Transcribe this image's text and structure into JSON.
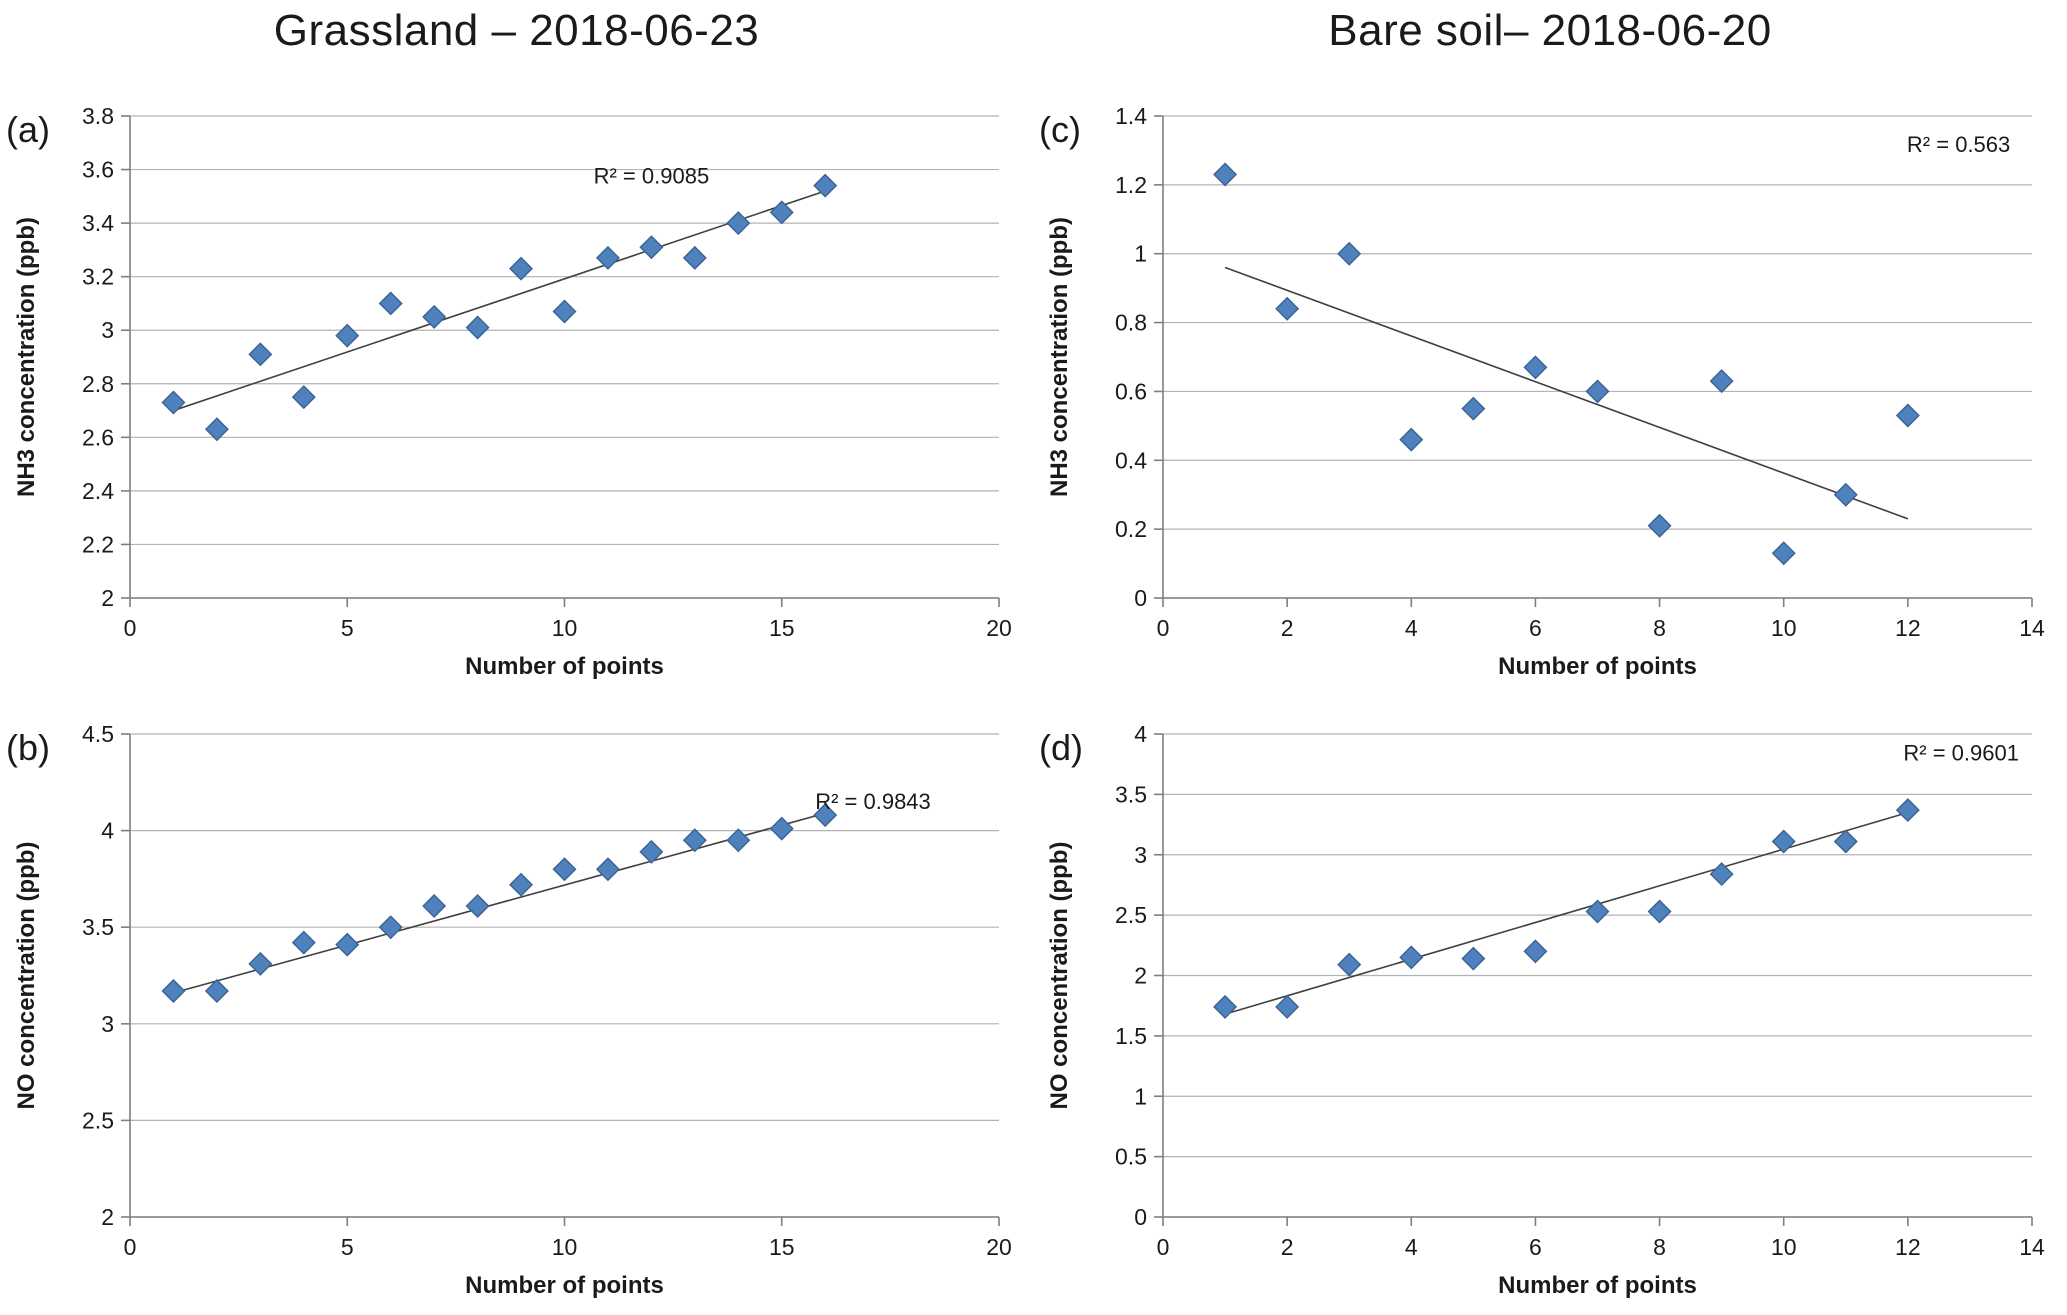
{
  "page": {
    "left_title": "Grassland – 2018-06-23",
    "right_title": "Bare soil– 2018-06-20"
  },
  "style": {
    "marker_fill": "#4F81BD",
    "marker_stroke": "#3A6293",
    "gridline_color": "#b3b3b3",
    "axis_color": "#7f7f7f",
    "trendline_color": "#404040",
    "text_color": "#1a1a1a"
  },
  "chart_data": [
    {
      "id": "a",
      "panel_label": "(a)",
      "type": "scatter",
      "xlabel": "Number of points",
      "ylabel": "NH3 concentration (ppb)",
      "xlim": [
        0,
        20
      ],
      "xtick_step": 5,
      "ylim": [
        2,
        3.8
      ],
      "ytick_step": 0.2,
      "grid": "horizontal",
      "legend": "none",
      "points": [
        [
          1,
          2.73
        ],
        [
          2,
          2.63
        ],
        [
          3,
          2.91
        ],
        [
          4,
          2.75
        ],
        [
          5,
          2.98
        ],
        [
          6,
          3.1
        ],
        [
          7,
          3.05
        ],
        [
          8,
          3.01
        ],
        [
          9,
          3.23
        ],
        [
          10,
          3.07
        ],
        [
          11,
          3.27
        ],
        [
          12,
          3.31
        ],
        [
          13,
          3.27
        ],
        [
          14,
          3.4
        ],
        [
          15,
          3.44
        ],
        [
          16,
          3.54
        ]
      ],
      "trendline": {
        "x1": 1,
        "y1": 2.7,
        "x2": 16,
        "y2": 3.52
      },
      "r2": {
        "label": "R² = 0.9085",
        "fx": 0.6,
        "fy": 0.14,
        "anchor": "middle"
      }
    },
    {
      "id": "c",
      "panel_label": "(c)",
      "type": "scatter",
      "xlabel": "Number of points",
      "ylabel": "NH3 concentration (ppb)",
      "xlim": [
        0,
        14
      ],
      "xtick_step": 2,
      "ylim": [
        0,
        1.4
      ],
      "ytick_step": 0.2,
      "grid": "horizontal",
      "legend": "none",
      "points": [
        [
          1,
          1.23
        ],
        [
          2,
          0.84
        ],
        [
          3,
          1.0
        ],
        [
          4,
          0.46
        ],
        [
          5,
          0.55
        ],
        [
          6,
          0.67
        ],
        [
          7,
          0.6
        ],
        [
          8,
          0.21
        ],
        [
          9,
          0.63
        ],
        [
          10,
          0.13
        ],
        [
          11,
          0.3
        ],
        [
          12,
          0.53
        ]
      ],
      "trendline": {
        "x1": 1,
        "y1": 0.96,
        "x2": 12,
        "y2": 0.23
      },
      "r2": {
        "label": "R² = 0.563",
        "fx": 0.975,
        "fy": 0.075,
        "anchor": "end"
      }
    },
    {
      "id": "b",
      "panel_label": "(b)",
      "type": "scatter",
      "xlabel": "Number of points",
      "ylabel": "NO concentration (ppb)",
      "xlim": [
        0,
        20
      ],
      "xtick_step": 5,
      "ylim": [
        2,
        4.5
      ],
      "ytick_step": 0.5,
      "grid": "horizontal",
      "legend": "none",
      "points": [
        [
          1,
          3.17
        ],
        [
          2,
          3.17
        ],
        [
          3,
          3.31
        ],
        [
          4,
          3.42
        ],
        [
          5,
          3.41
        ],
        [
          6,
          3.5
        ],
        [
          7,
          3.61
        ],
        [
          8,
          3.61
        ],
        [
          9,
          3.72
        ],
        [
          10,
          3.8
        ],
        [
          11,
          3.8
        ],
        [
          12,
          3.89
        ],
        [
          13,
          3.95
        ],
        [
          14,
          3.95
        ],
        [
          15,
          4.01
        ],
        [
          16,
          4.08
        ]
      ],
      "trendline": {
        "x1": 1,
        "y1": 3.16,
        "x2": 16,
        "y2": 4.09
      },
      "r2": {
        "label": "R² = 0.9843",
        "fx": 0.855,
        "fy": 0.155,
        "anchor": "middle"
      }
    },
    {
      "id": "d",
      "panel_label": "(d)",
      "type": "scatter",
      "xlabel": "Number of points",
      "ylabel": "NO concentration (ppb)",
      "xlim": [
        0,
        14
      ],
      "xtick_step": 2,
      "ylim": [
        0,
        4
      ],
      "ytick_step": 0.5,
      "grid": "horizontal",
      "legend": "none",
      "points": [
        [
          1,
          1.74
        ],
        [
          2,
          1.74
        ],
        [
          3,
          2.09
        ],
        [
          4,
          2.15
        ],
        [
          5,
          2.14
        ],
        [
          6,
          2.2
        ],
        [
          7,
          2.53
        ],
        [
          8,
          2.53
        ],
        [
          9,
          2.84
        ],
        [
          10,
          3.11
        ],
        [
          11,
          3.11
        ],
        [
          12,
          3.37
        ]
      ],
      "trendline": {
        "x1": 1,
        "y1": 1.68,
        "x2": 12,
        "y2": 3.35
      },
      "r2": {
        "label": "R² = 0.9601",
        "fx": 0.985,
        "fy": 0.055,
        "anchor": "end"
      }
    }
  ]
}
